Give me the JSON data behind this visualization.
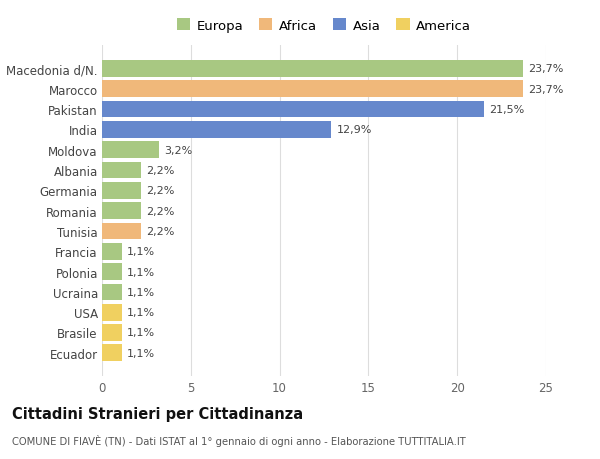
{
  "categories": [
    "Macedonia d/N.",
    "Marocco",
    "Pakistan",
    "India",
    "Moldova",
    "Albania",
    "Germania",
    "Romania",
    "Tunisia",
    "Francia",
    "Polonia",
    "Ucraina",
    "USA",
    "Brasile",
    "Ecuador"
  ],
  "values": [
    23.7,
    23.7,
    21.5,
    12.9,
    3.2,
    2.2,
    2.2,
    2.2,
    2.2,
    1.1,
    1.1,
    1.1,
    1.1,
    1.1,
    1.1
  ],
  "labels": [
    "23,7%",
    "23,7%",
    "21,5%",
    "12,9%",
    "3,2%",
    "2,2%",
    "2,2%",
    "2,2%",
    "2,2%",
    "1,1%",
    "1,1%",
    "1,1%",
    "1,1%",
    "1,1%",
    "1,1%"
  ],
  "continents": [
    "Europa",
    "Africa",
    "Asia",
    "Asia",
    "Europa",
    "Europa",
    "Europa",
    "Europa",
    "Africa",
    "Europa",
    "Europa",
    "Europa",
    "America",
    "America",
    "America"
  ],
  "continent_colors": {
    "Europa": "#a8c882",
    "Africa": "#f0b87a",
    "Asia": "#6688cc",
    "America": "#f0d060"
  },
  "legend_order": [
    "Europa",
    "Africa",
    "Asia",
    "America"
  ],
  "legend_colors": [
    "#a8c882",
    "#f0b87a",
    "#6688cc",
    "#f0d060"
  ],
  "title": "Cittadini Stranieri per Cittadinanza",
  "subtitle": "COMUNE DI FIAVÈ (TN) - Dati ISTAT al 1° gennaio di ogni anno - Elaborazione TUTTITALIA.IT",
  "xlim": [
    0,
    25
  ],
  "xticks": [
    0,
    5,
    10,
    15,
    20,
    25
  ],
  "background_color": "#ffffff",
  "bar_height": 0.82,
  "grid_color": "#dddddd"
}
